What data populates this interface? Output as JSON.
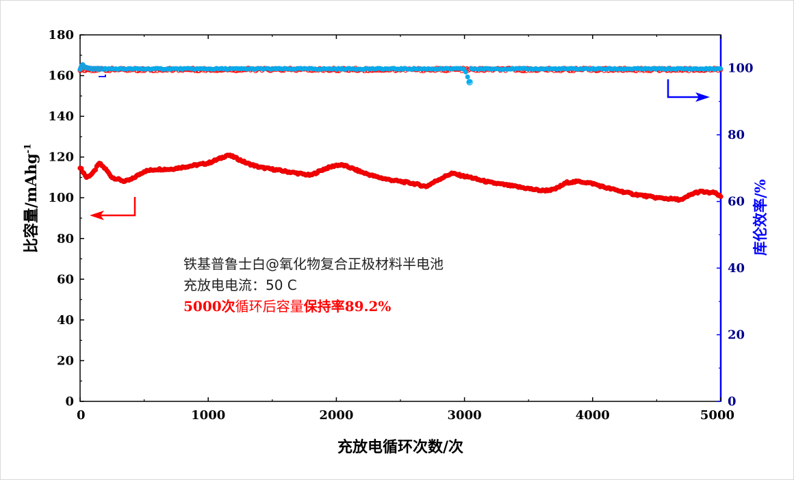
{
  "chart_data": {
    "type": "scatter",
    "xlabel": "充放电循环次数/次",
    "ylabel_left": "比容量/mAhg",
    "ylabel_left_superscript": "-1",
    "ylabel_right": "库伦效率/%",
    "xlim": [
      0,
      5000
    ],
    "ylim_left": [
      0,
      180
    ],
    "ylim_right": [
      0,
      110
    ],
    "x_ticks": [
      "0",
      "1000",
      "2000",
      "3000",
      "4000",
      "5000"
    ],
    "y_left_ticks": [
      "0",
      "20",
      "40",
      "60",
      "80",
      "100",
      "120",
      "140",
      "160",
      "180"
    ],
    "y_right_ticks": [
      "0",
      "20",
      "40",
      "60",
      "80",
      "100"
    ],
    "colors": {
      "capacity": "#ff0000",
      "efficiency_fill": "#00b0f0",
      "efficiency_edge": "#1f9ad8",
      "right_axis": "#0000ff"
    },
    "series": [
      {
        "axis": "left",
        "x": [
          0,
          50,
          100,
          150,
          200,
          250,
          300,
          350,
          400,
          450,
          500,
          600,
          700,
          800,
          900,
          1000,
          1100,
          1150,
          1200,
          1300,
          1400,
          1500,
          1600,
          1700,
          1800,
          1900,
          2000,
          2050,
          2100,
          2200,
          2300,
          2400,
          2500,
          2600,
          2700,
          2800,
          2900,
          3000,
          3050,
          3100,
          3200,
          3300,
          3400,
          3500,
          3600,
          3700,
          3800,
          3900,
          4000,
          4100,
          4200,
          4300,
          4400,
          4500,
          4600,
          4700,
          4750,
          4800,
          4850,
          4900,
          4950,
          5000
        ],
        "values": [
          115,
          110,
          112,
          117,
          114,
          110,
          109,
          108,
          109,
          111,
          113,
          114,
          114,
          115,
          116,
          117,
          119.5,
          121,
          120,
          117,
          115,
          114,
          113,
          112,
          111,
          114,
          116,
          116,
          115,
          112.5,
          110.5,
          109,
          108,
          107,
          105.5,
          109,
          112,
          110.5,
          110,
          109,
          107.5,
          106.5,
          105.5,
          104.5,
          103.5,
          104,
          107.5,
          108,
          107,
          105,
          103.5,
          102,
          101,
          100,
          99.5,
          99,
          101,
          102.5,
          103,
          102.5,
          102.5,
          100.5
        ]
      },
      {
        "axis": "right",
        "x": [
          0,
          10,
          20,
          30,
          40,
          50,
          60,
          80,
          100,
          150,
          200,
          500,
          1000,
          1500,
          2000,
          2500,
          3000,
          3040,
          3050,
          3500,
          4000,
          4500,
          5000
        ],
        "values": [
          99.5,
          100.5,
          101,
          100.5,
          100.3,
          100.2,
          100,
          99.9,
          99.8,
          99.8,
          99.8,
          99.8,
          99.8,
          99.8,
          99.8,
          99.8,
          99.8,
          95.8,
          99.8,
          99.8,
          99.8,
          99.8,
          99.8
        ]
      }
    ],
    "annotations": {
      "line1": "铁基普鲁士白@氧化物复合正极材料半电池",
      "line2": "充放电电流：50 C",
      "line3_a": "5000",
      "line3_b": "次",
      "line3_c": "循环后容量",
      "line3_d": "保持率",
      "line3_e": "89.2%"
    },
    "grid": false,
    "legend": "none"
  }
}
